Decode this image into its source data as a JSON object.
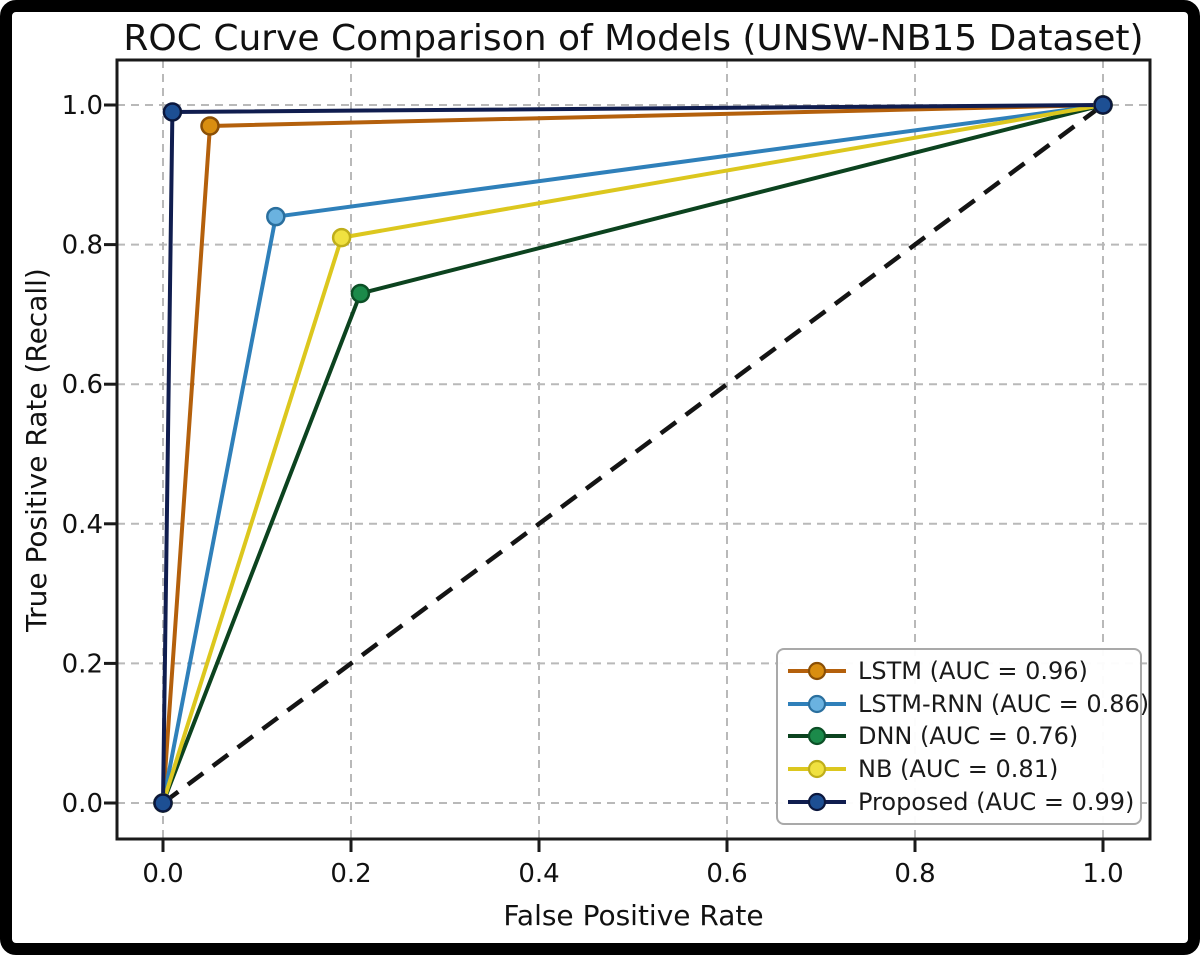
{
  "figure": {
    "frame_color": "#000000",
    "background_color": "#ffffff",
    "spine_color": "#1a1a1a",
    "grid_color": "#b9b9b9",
    "text_color": "#111111",
    "legend_border_color": "#a9a9a9"
  },
  "chart_data": {
    "type": "line",
    "title": "ROC Curve Comparison of Models (UNSW-NB15 Dataset)",
    "xlabel": "False Positive Rate",
    "ylabel": "True Positive Rate (Recall)",
    "xlim": [
      -0.05,
      1.05
    ],
    "ylim": [
      -0.05,
      1.06
    ],
    "grid": true,
    "grid_style": "dashed",
    "legend_position": "lower right",
    "xticks": {
      "values": [
        0.0,
        0.2,
        0.4,
        0.6,
        0.8,
        1.0
      ],
      "labels": [
        "0.0",
        "0.2",
        "0.4",
        "0.6",
        "0.8",
        "1.0"
      ]
    },
    "yticks": {
      "values": [
        0.0,
        0.2,
        0.4,
        0.6,
        0.8,
        1.0
      ],
      "labels": [
        "0.0",
        "0.2",
        "0.4",
        "0.6",
        "0.8",
        "1.0"
      ]
    },
    "series": [
      {
        "name": "LSTM",
        "label": "LSTM (AUC = 0.96)",
        "auc": 0.96,
        "points": [
          [
            0.0,
            0.0
          ],
          [
            0.05,
            0.97
          ],
          [
            1.0,
            1.0
          ]
        ],
        "line_color": "#b4600c",
        "marker_color": "#d98e10",
        "marker_edge_color": "#8a4f06"
      },
      {
        "name": "LSTM-RNN",
        "label": "LSTM-RNN (AUC = 0.86)",
        "auc": 0.86,
        "points": [
          [
            0.0,
            0.0
          ],
          [
            0.12,
            0.84
          ],
          [
            1.0,
            1.0
          ]
        ],
        "line_color": "#2f80ba",
        "marker_color": "#6ab2e0",
        "marker_edge_color": "#2a6f9e"
      },
      {
        "name": "DNN",
        "label": "DNN (AUC = 0.76)",
        "auc": 0.76,
        "points": [
          [
            0.0,
            0.0
          ],
          [
            0.21,
            0.73
          ],
          [
            1.0,
            1.0
          ]
        ],
        "line_color": "#0c431f",
        "marker_color": "#1b8a4a",
        "marker_edge_color": "#0b4f26"
      },
      {
        "name": "NB",
        "label": "NB (AUC = 0.81)",
        "auc": 0.81,
        "points": [
          [
            0.0,
            0.0
          ],
          [
            0.19,
            0.81
          ],
          [
            1.0,
            1.0
          ]
        ],
        "line_color": "#dcc71e",
        "marker_color": "#f0e140",
        "marker_edge_color": "#bfae1a"
      },
      {
        "name": "Proposed",
        "label": "Proposed (AUC = 0.99)",
        "auc": 0.99,
        "points": [
          [
            0.0,
            0.0
          ],
          [
            0.01,
            0.99
          ],
          [
            1.0,
            1.0
          ]
        ],
        "line_color": "#101d4f",
        "marker_color": "#1d4f93",
        "marker_edge_color": "#0b173d"
      }
    ],
    "diagonal_reference": {
      "from": [
        0.0,
        0.0
      ],
      "to": [
        1.0,
        1.0
      ],
      "color": "#141414",
      "style": "dashed"
    }
  }
}
